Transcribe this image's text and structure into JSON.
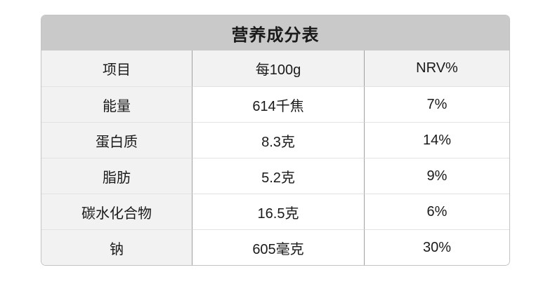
{
  "table": {
    "title": "营养成分表",
    "columns": [
      "项目",
      "每100g",
      "NRV%"
    ],
    "rows": [
      {
        "item": "能量",
        "per100g": "614千焦",
        "nrv": "7%"
      },
      {
        "item": "蛋白质",
        "per100g": "8.3克",
        "nrv": "14%"
      },
      {
        "item": "脂肪",
        "per100g": "5.2克",
        "nrv": "9%"
      },
      {
        "item": "碳水化合物",
        "per100g": "16.5克",
        "nrv": "6%"
      },
      {
        "item": "钠",
        "per100g": "605毫克",
        "nrv": "30%"
      }
    ],
    "colors": {
      "title_bar_bg": "#c9c9c9",
      "header_bg": "#f2f2f2",
      "row_label_bg": "#f2f2f2",
      "data_cell_bg": "#ffffff",
      "vertical_border": "#a0a0a0",
      "horizontal_border": "#e2e2e2",
      "outer_border": "#c3c3c3",
      "text": "#1a1a1a"
    }
  },
  "chart_data": {
    "type": "table",
    "title": "营养成分表",
    "columns": [
      "项目",
      "每100g",
      "NRV%"
    ],
    "rows": [
      [
        "能量",
        "614千焦",
        "7%"
      ],
      [
        "蛋白质",
        "8.3克",
        "14%"
      ],
      [
        "脂肪",
        "5.2克",
        "9%"
      ],
      [
        "碳水化合物",
        "16.5克",
        "6%"
      ],
      [
        "钠",
        "605毫克",
        "30%"
      ]
    ],
    "notes": "Nutrition facts table: per-100g amounts and NRV percentages"
  }
}
